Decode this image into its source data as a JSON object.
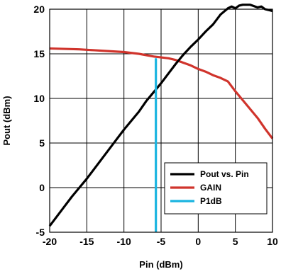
{
  "chart_data": {
    "type": "line",
    "title": "",
    "xlabel": "Pin (dBm)",
    "ylabel": "Pout (dBm)",
    "xlim": [
      -20,
      10
    ],
    "ylim": [
      -5,
      20
    ],
    "xticks": [
      "-20",
      "-15",
      "-10",
      "-5",
      "0",
      "5",
      "10"
    ],
    "yticks": [
      "-5",
      "0",
      "5",
      "10",
      "15",
      "20"
    ],
    "grid": true,
    "legend_position": "bottom-right",
    "series": [
      {
        "name": "Pout vs. Pin",
        "color": "#000000",
        "points": [
          [
            -20,
            -4.3
          ],
          [
            -19,
            -3.2
          ],
          [
            -18,
            -2.1
          ],
          [
            -17,
            -1.0
          ],
          [
            -16,
            0.0
          ],
          [
            -15,
            1.0
          ],
          [
            -14,
            2.1
          ],
          [
            -13,
            3.2
          ],
          [
            -12,
            4.3
          ],
          [
            -11,
            5.4
          ],
          [
            -10,
            6.5
          ],
          [
            -9,
            7.5
          ],
          [
            -8,
            8.5
          ],
          [
            -7,
            9.7
          ],
          [
            -6,
            10.7
          ],
          [
            -5,
            11.7
          ],
          [
            -4,
            12.8
          ],
          [
            -3,
            13.9
          ],
          [
            -2,
            14.9
          ],
          [
            -1,
            15.8
          ],
          [
            0,
            16.6
          ],
          [
            1,
            17.5
          ],
          [
            2,
            18.3
          ],
          [
            3,
            19.4
          ],
          [
            4,
            20.1
          ],
          [
            4.5,
            20.3
          ],
          [
            5,
            20.1
          ],
          [
            5.5,
            20.4
          ],
          [
            6,
            20.5
          ],
          [
            7,
            20.5
          ],
          [
            8,
            20.2
          ],
          [
            8.5,
            20.3
          ],
          [
            9,
            20.0
          ],
          [
            10,
            19.8
          ]
        ]
      },
      {
        "name": "GAIN",
        "color": "#d0342c",
        "points": [
          [
            -20,
            15.6
          ],
          [
            -18,
            15.55
          ],
          [
            -16,
            15.5
          ],
          [
            -14,
            15.4
          ],
          [
            -12,
            15.3
          ],
          [
            -10,
            15.2
          ],
          [
            -8,
            15.0
          ],
          [
            -6,
            14.7
          ],
          [
            -5,
            14.6
          ],
          [
            -4,
            14.5
          ],
          [
            -3,
            14.3
          ],
          [
            -2,
            14.0
          ],
          [
            -1,
            13.7
          ],
          [
            0,
            13.3
          ],
          [
            1,
            13.0
          ],
          [
            2,
            12.6
          ],
          [
            3,
            12.3
          ],
          [
            4,
            11.9
          ],
          [
            5,
            10.8
          ],
          [
            6,
            9.8
          ],
          [
            7,
            8.8
          ],
          [
            8,
            7.8
          ],
          [
            9,
            6.6
          ],
          [
            10,
            5.5
          ]
        ]
      },
      {
        "name": "P1dB",
        "color": "#1ab4e0",
        "points": [
          [
            -5.7,
            -5
          ],
          [
            -5.7,
            14.5
          ]
        ]
      }
    ]
  }
}
